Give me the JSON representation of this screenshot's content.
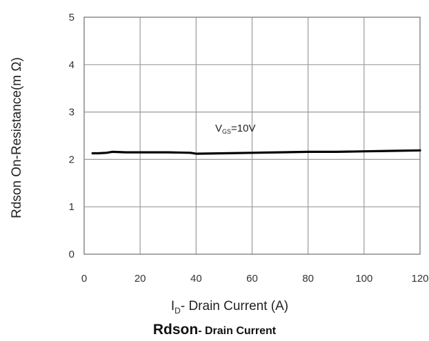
{
  "chart_data": {
    "type": "line",
    "title_main": "Rdson",
    "title_rest": "- Drain Current",
    "xlabel_sym": "I",
    "xlabel_sub": "D",
    "xlabel_rest": "- Drain Current (A)",
    "ylabel": "Rdson On-Resistance(m Ω)",
    "xlim": [
      0,
      120
    ],
    "ylim": [
      0,
      5
    ],
    "xticks": [
      "0",
      "20",
      "40",
      "60",
      "80",
      "100",
      "120"
    ],
    "yticks": [
      "0",
      "1",
      "2",
      "3",
      "4",
      "5"
    ],
    "grid": true,
    "annotation": {
      "sym": "V",
      "sub": "GS",
      "rest": "=10V"
    },
    "series": [
      {
        "x": [
          3,
          5,
          8,
          10,
          15,
          20,
          30,
          38,
          40,
          50,
          60,
          70,
          80,
          90,
          100,
          110,
          120
        ],
        "y": [
          2.13,
          2.13,
          2.14,
          2.16,
          2.15,
          2.15,
          2.15,
          2.14,
          2.12,
          2.13,
          2.14,
          2.15,
          2.16,
          2.16,
          2.17,
          2.18,
          2.19
        ],
        "color": "#000000"
      }
    ]
  }
}
